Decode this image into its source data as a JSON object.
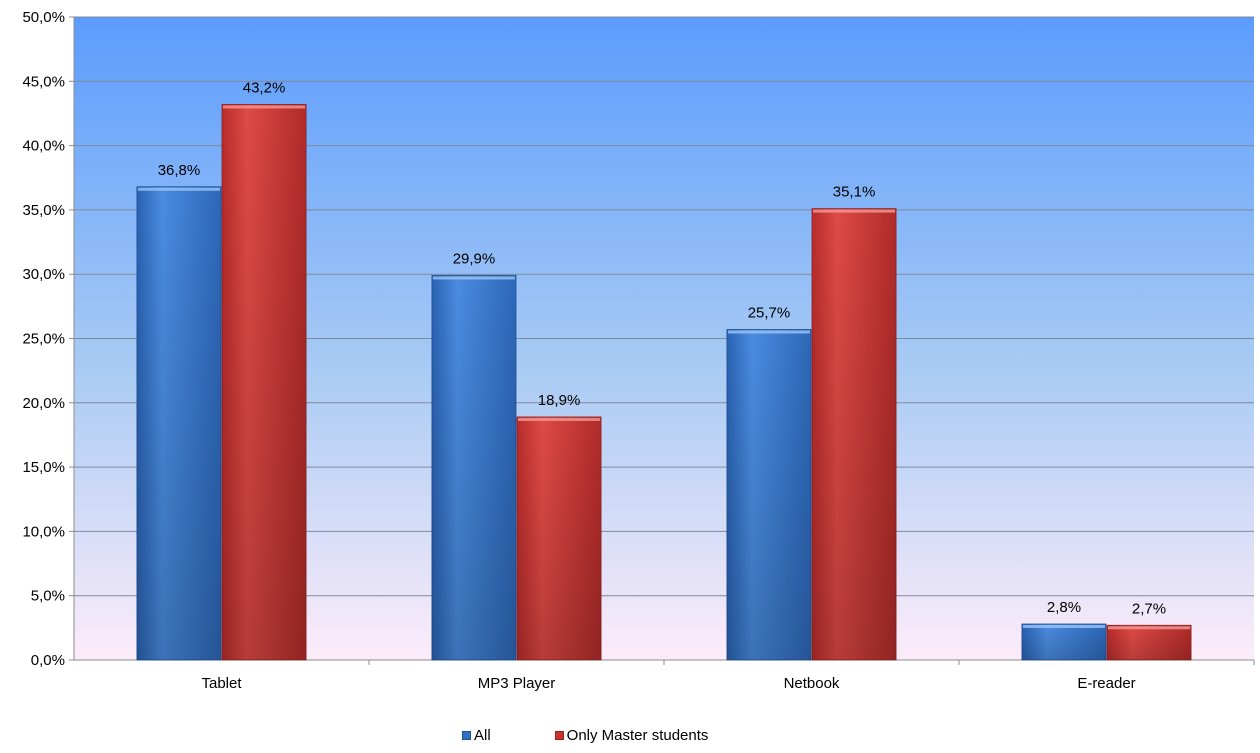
{
  "chart_data": {
    "type": "bar",
    "categories": [
      "Tablet",
      "MP3 Player",
      "Netbook",
      "E-reader"
    ],
    "series": [
      {
        "name": "All",
        "values": [
          36.8,
          29.9,
          25.7,
          2.8
        ],
        "labels": [
          "36,8%",
          "29,9%",
          "25,7%",
          "2,8%"
        ],
        "color": "#2f6fc4"
      },
      {
        "name": "Only Master students",
        "values": [
          43.2,
          18.9,
          35.1,
          2.7
        ],
        "labels": [
          "43,2%",
          "18,9%",
          "35,1%",
          "2,7%"
        ],
        "color": "#c8322f"
      }
    ],
    "ylim": [
      0,
      50
    ],
    "yticks": [
      0,
      5,
      10,
      15,
      20,
      25,
      30,
      35,
      40,
      45,
      50
    ],
    "ytick_labels": [
      "0,0%",
      "5,0%",
      "10,0%",
      "15,0%",
      "20,0%",
      "25,0%",
      "30,0%",
      "35,0%",
      "40,0%",
      "45,0%",
      "50,0%"
    ],
    "grid": true,
    "legend_position": "bottom",
    "title": "",
    "xlabel": "",
    "ylabel": "",
    "background_gradient": [
      "#5b9cfd",
      "#fdecfa"
    ]
  }
}
